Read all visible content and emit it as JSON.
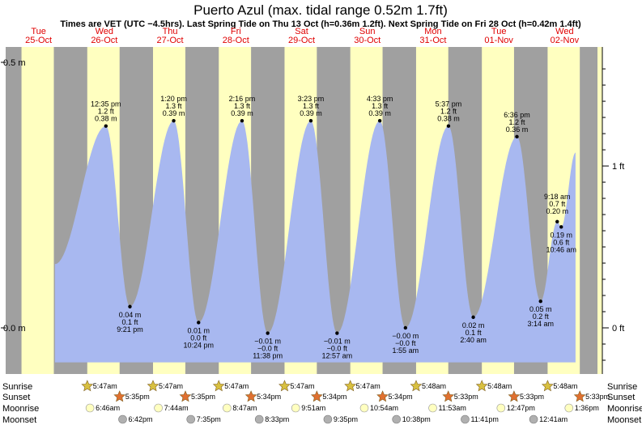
{
  "title": "Puerto Azul (max. tidal range 0.52m 1.7ft)",
  "subtitle": "Times are VET (UTC −4.5hrs). Last Spring Tide on Thu 13 Oct (h=0.36m 1.2ft). Next Spring Tide on Fri 28 Oct (h=0.42m 1.4ft)",
  "colors": {
    "night": "#a0a0a0",
    "day": "#ffffc0",
    "tide_fill": "#a8b8f0",
    "date_text": "#e00000",
    "sunrise_star": "#d8c040",
    "sunset_star": "#e07030",
    "moonrise": "#ffffc0",
    "moonset": "#b0b0b0"
  },
  "days": [
    {
      "dow": "Tue",
      "date": "25-Oct"
    },
    {
      "dow": "Wed",
      "date": "26-Oct"
    },
    {
      "dow": "Thu",
      "date": "27-Oct"
    },
    {
      "dow": "Fri",
      "date": "28-Oct"
    },
    {
      "dow": "Sat",
      "date": "29-Oct"
    },
    {
      "dow": "Sun",
      "date": "30-Oct"
    },
    {
      "dow": "Mon",
      "date": "31-Oct"
    },
    {
      "dow": "Tue",
      "date": "01-Nov"
    },
    {
      "dow": "Wed",
      "date": "02-Nov"
    }
  ],
  "chart_data": {
    "type": "area",
    "title": "Puerto Azul (max. tidal range 0.52m 1.7ft)",
    "y_axis_left": {
      "unit": "m",
      "ticks": [
        {
          "value": 0.0,
          "label": "0.0 m"
        },
        {
          "value": 0.5,
          "label": "0.5 m"
        }
      ]
    },
    "y_axis_right": {
      "unit": "ft",
      "ticks": [
        {
          "value": 0,
          "label": "0 ft"
        },
        {
          "value": 1,
          "label": "1 ft"
        }
      ]
    },
    "ylim": [
      -0.07,
      0.52
    ],
    "x_start": "Tue 25-Oct 00:00",
    "x_range_days": 9,
    "tide_start": {
      "day": 0,
      "time": "18:00",
      "height": 0.12
    },
    "tide_end": {
      "day": 8,
      "time": "16:00",
      "height": 0.33
    },
    "extremes": [
      {
        "day": 1,
        "time": "12:35 pm",
        "ft": "1.2 ft",
        "m": "0.38 m",
        "height": 0.38,
        "kind": "high"
      },
      {
        "day": 1,
        "time": "9:21 pm",
        "ft": "0.1 ft",
        "m": "0.04 m",
        "height": 0.04,
        "kind": "low"
      },
      {
        "day": 2,
        "time": "1:20 pm",
        "ft": "1.3 ft",
        "m": "0.39 m",
        "height": 0.39,
        "kind": "high"
      },
      {
        "day": 2,
        "time": "10:24 pm",
        "ft": "0.0 ft",
        "m": "0.01 m",
        "height": 0.01,
        "kind": "low"
      },
      {
        "day": 3,
        "time": "2:16 pm",
        "ft": "1.3 ft",
        "m": "0.39 m",
        "height": 0.39,
        "kind": "high"
      },
      {
        "day": 3,
        "time": "11:38 pm",
        "ft": "−0.0 ft",
        "m": "−0.01 m",
        "height": -0.01,
        "kind": "low"
      },
      {
        "day": 4,
        "time": "3:23 pm",
        "ft": "1.3 ft",
        "m": "0.39 m",
        "height": 0.39,
        "kind": "high"
      },
      {
        "day": 5,
        "time": "12:57 am",
        "ft": "−0.0 ft",
        "m": "−0.01 m",
        "height": -0.01,
        "kind": "low"
      },
      {
        "day": 5,
        "time": "4:33 pm",
        "ft": "1.3 ft",
        "m": "0.39 m",
        "height": 0.39,
        "kind": "high"
      },
      {
        "day": 6,
        "time": "1:55 am",
        "ft": "−0.0 ft",
        "m": "−0.00 m",
        "height": 0.0,
        "kind": "low"
      },
      {
        "day": 6,
        "time": "5:37 pm",
        "ft": "1.2 ft",
        "m": "0.38 m",
        "height": 0.38,
        "kind": "high"
      },
      {
        "day": 7,
        "time": "2:40 am",
        "ft": "0.1 ft",
        "m": "0.02 m",
        "height": 0.02,
        "kind": "low"
      },
      {
        "day": 7,
        "time": "6:36 pm",
        "ft": "1.2 ft",
        "m": "0.36 m",
        "height": 0.36,
        "kind": "high"
      },
      {
        "day": 8,
        "time": "3:14 am",
        "ft": "0.2 ft",
        "m": "0.05 m",
        "height": 0.05,
        "kind": "low"
      },
      {
        "day": 8,
        "time": "9:18 am",
        "ft": "0.7 ft",
        "m": "0.20 m",
        "height": 0.2,
        "kind": "high"
      },
      {
        "day": 8,
        "time": "10:46 am",
        "ft": "0.6 ft",
        "m": "0.19 m",
        "height": 0.19,
        "kind": "low"
      }
    ],
    "sunrise": {
      "label": "Sunrise",
      "events": [
        {
          "day": 1,
          "time": "5:47am"
        },
        {
          "day": 2,
          "time": "5:47am"
        },
        {
          "day": 3,
          "time": "5:47am"
        },
        {
          "day": 4,
          "time": "5:47am"
        },
        {
          "day": 5,
          "time": "5:47am"
        },
        {
          "day": 6,
          "time": "5:48am"
        },
        {
          "day": 7,
          "time": "5:48am"
        },
        {
          "day": 8,
          "time": "5:48am"
        }
      ]
    },
    "sunset": {
      "label": "Sunset",
      "events": [
        {
          "day": 1,
          "time": "5:35pm"
        },
        {
          "day": 2,
          "time": "5:35pm"
        },
        {
          "day": 3,
          "time": "5:34pm"
        },
        {
          "day": 4,
          "time": "5:34pm"
        },
        {
          "day": 5,
          "time": "5:34pm"
        },
        {
          "day": 6,
          "time": "5:33pm"
        },
        {
          "day": 7,
          "time": "5:33pm"
        },
        {
          "day": 8,
          "time": "5:33pm"
        }
      ]
    },
    "moonrise": {
      "label": "Moonrise",
      "events": [
        {
          "day": 1,
          "time": "6:46am"
        },
        {
          "day": 2,
          "time": "7:44am"
        },
        {
          "day": 3,
          "time": "8:47am"
        },
        {
          "day": 4,
          "time": "9:51am"
        },
        {
          "day": 5,
          "time": "10:54am"
        },
        {
          "day": 6,
          "time": "11:53am"
        },
        {
          "day": 7,
          "time": "12:47pm"
        },
        {
          "day": 8,
          "time": "1:36pm"
        }
      ]
    },
    "moonset": {
      "label": "Moonset",
      "events": [
        {
          "day": 1,
          "time": "6:42pm"
        },
        {
          "day": 2,
          "time": "7:35pm"
        },
        {
          "day": 3,
          "time": "8:33pm"
        },
        {
          "day": 4,
          "time": "9:35pm"
        },
        {
          "day": 5,
          "time": "10:38pm"
        },
        {
          "day": 6,
          "time": "11:41pm"
        },
        {
          "day": 8,
          "time": "12:41am"
        }
      ]
    }
  }
}
